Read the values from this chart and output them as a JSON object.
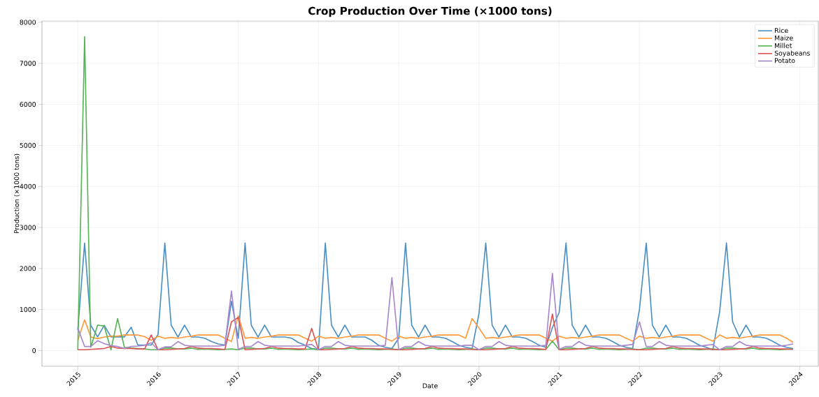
{
  "chart_data": {
    "type": "line",
    "title": "Crop Production Over Time (×1000 tons)",
    "xlabel": "Date",
    "ylabel": "Production (×1000 tons)",
    "x": [
      "2015-01",
      "2015-02",
      "2015-03",
      "2015-04",
      "2015-05",
      "2015-06",
      "2015-07",
      "2015-08",
      "2015-09",
      "2015-10",
      "2015-11",
      "2015-12",
      "2016-01",
      "2016-02",
      "2016-03",
      "2016-04",
      "2016-05",
      "2016-06",
      "2016-07",
      "2016-08",
      "2016-09",
      "2016-10",
      "2016-11",
      "2016-12",
      "2017-01",
      "2017-02",
      "2017-03",
      "2017-04",
      "2017-05",
      "2017-06",
      "2017-07",
      "2017-08",
      "2017-09",
      "2017-10",
      "2017-11",
      "2017-12",
      "2018-01",
      "2018-02",
      "2018-03",
      "2018-04",
      "2018-05",
      "2018-06",
      "2018-07",
      "2018-08",
      "2018-09",
      "2018-10",
      "2018-11",
      "2018-12",
      "2019-01",
      "2019-02",
      "2019-03",
      "2019-04",
      "2019-05",
      "2019-06",
      "2019-07",
      "2019-08",
      "2019-09",
      "2019-10",
      "2019-11",
      "2019-12",
      "2020-01",
      "2020-02",
      "2020-03",
      "2020-04",
      "2020-05",
      "2020-06",
      "2020-07",
      "2020-08",
      "2020-09",
      "2020-10",
      "2020-11",
      "2020-12",
      "2021-01",
      "2021-02",
      "2021-03",
      "2021-04",
      "2021-05",
      "2021-06",
      "2021-07",
      "2021-08",
      "2021-09",
      "2021-10",
      "2021-11",
      "2021-12",
      "2022-01",
      "2022-02",
      "2022-03",
      "2022-04",
      "2022-05",
      "2022-06",
      "2022-07",
      "2022-08",
      "2022-09",
      "2022-10",
      "2022-11",
      "2022-12",
      "2023-01",
      "2023-02",
      "2023-03",
      "2023-04",
      "2023-05",
      "2023-06",
      "2023-07",
      "2023-08",
      "2023-09",
      "2023-10",
      "2023-11",
      "2023-12"
    ],
    "series": [
      {
        "name": "Rice",
        "color": "#4a90c4",
        "values": [
          500,
          2620,
          615,
          333,
          615,
          333,
          333,
          333,
          570,
          135,
          135,
          135,
          390,
          2620,
          620,
          330,
          620,
          330,
          330,
          300,
          220,
          160,
          135,
          1200,
          300,
          2620,
          620,
          330,
          620,
          330,
          330,
          330,
          300,
          200,
          130,
          50,
          30,
          2620,
          620,
          330,
          620,
          330,
          330,
          330,
          250,
          130,
          80,
          50,
          300,
          2620,
          620,
          330,
          620,
          330,
          330,
          300,
          220,
          130,
          80,
          50,
          900,
          2620,
          620,
          330,
          620,
          330,
          330,
          300,
          220,
          130,
          80,
          560,
          930,
          2620,
          620,
          330,
          620,
          330,
          330,
          300,
          220,
          130,
          80,
          50,
          1000,
          2620,
          620,
          330,
          620,
          330,
          330,
          300,
          220,
          130,
          80,
          20,
          950,
          2620,
          700,
          330,
          620,
          330,
          330,
          300,
          220,
          130,
          80,
          50
        ]
      },
      {
        "name": "Maize",
        "color": "#ff9a3c",
        "values": [
          250,
          750,
          330,
          290,
          330,
          350,
          350,
          380,
          380,
          380,
          340,
          250,
          350,
          300,
          320,
          300,
          330,
          350,
          380,
          380,
          380,
          380,
          300,
          220,
          850,
          300,
          320,
          300,
          330,
          350,
          380,
          380,
          380,
          380,
          300,
          230,
          350,
          300,
          320,
          300,
          330,
          350,
          380,
          380,
          380,
          380,
          300,
          230,
          350,
          300,
          320,
          300,
          330,
          350,
          380,
          380,
          380,
          380,
          300,
          780,
          550,
          300,
          320,
          300,
          330,
          350,
          380,
          380,
          380,
          380,
          300,
          230,
          350,
          300,
          320,
          300,
          330,
          350,
          380,
          380,
          380,
          380,
          300,
          230,
          350,
          300,
          320,
          300,
          330,
          350,
          380,
          380,
          380,
          380,
          300,
          230,
          380,
          300,
          320,
          300,
          330,
          350,
          380,
          380,
          380,
          380,
          300,
          200
        ]
      },
      {
        "name": "Millet",
        "color": "#56b456",
        "values": [
          20,
          7650,
          80,
          620,
          600,
          20,
          780,
          80,
          60,
          50,
          40,
          20,
          20,
          60,
          60,
          40,
          40,
          60,
          30,
          40,
          30,
          20,
          30,
          40,
          20,
          60,
          60,
          40,
          40,
          60,
          30,
          40,
          30,
          20,
          30,
          40,
          20,
          60,
          60,
          40,
          40,
          60,
          30,
          40,
          30,
          20,
          30,
          40,
          20,
          60,
          60,
          40,
          40,
          60,
          30,
          40,
          30,
          20,
          30,
          40,
          20,
          60,
          60,
          40,
          40,
          60,
          30,
          40,
          30,
          20,
          30,
          230,
          20,
          60,
          60,
          40,
          40,
          60,
          30,
          40,
          30,
          20,
          30,
          40,
          20,
          60,
          60,
          40,
          40,
          60,
          30,
          40,
          30,
          20,
          30,
          40,
          20,
          60,
          60,
          40,
          40,
          60,
          30,
          40,
          30,
          20,
          30,
          40
        ]
      },
      {
        "name": "Soyabeans",
        "color": "#dc5455",
        "values": [
          20,
          20,
          30,
          40,
          50,
          100,
          60,
          50,
          50,
          40,
          40,
          380,
          20,
          20,
          30,
          40,
          50,
          100,
          60,
          50,
          50,
          40,
          30,
          700,
          810,
          20,
          30,
          40,
          50,
          100,
          60,
          50,
          50,
          40,
          40,
          540,
          20,
          20,
          30,
          40,
          50,
          100,
          60,
          50,
          50,
          40,
          40,
          30,
          20,
          20,
          30,
          40,
          50,
          100,
          60,
          50,
          50,
          40,
          40,
          30,
          20,
          20,
          30,
          40,
          50,
          100,
          60,
          50,
          50,
          40,
          30,
          890,
          20,
          20,
          30,
          40,
          50,
          100,
          60,
          50,
          50,
          40,
          40,
          30,
          20,
          20,
          30,
          40,
          50,
          100,
          60,
          50,
          50,
          40,
          40,
          30,
          20,
          20,
          30,
          40,
          50,
          100,
          60,
          50,
          50,
          40,
          40,
          30
        ]
      },
      {
        "name": "Potato",
        "color": "#a887cb",
        "values": [
          550,
          100,
          100,
          240,
          170,
          120,
          100,
          50,
          100,
          110,
          130,
          190,
          20,
          90,
          90,
          220,
          130,
          110,
          110,
          110,
          110,
          110,
          130,
          1450,
          30,
          100,
          100,
          220,
          130,
          110,
          110,
          110,
          110,
          110,
          130,
          150,
          20,
          100,
          100,
          220,
          130,
          110,
          110,
          110,
          110,
          110,
          130,
          1780,
          20,
          100,
          100,
          220,
          130,
          110,
          110,
          110,
          110,
          110,
          130,
          130,
          20,
          100,
          100,
          220,
          130,
          110,
          110,
          110,
          110,
          110,
          130,
          1880,
          30,
          100,
          100,
          220,
          130,
          110,
          110,
          110,
          110,
          110,
          130,
          150,
          700,
          100,
          100,
          220,
          130,
          110,
          110,
          110,
          110,
          110,
          130,
          150,
          20,
          100,
          100,
          220,
          130,
          110,
          110,
          110,
          110,
          110,
          130,
          160
        ]
      }
    ],
    "xlim": [
      "2014-07-22",
      "2024-03-25"
    ],
    "xticks": [
      "2015",
      "2016",
      "2017",
      "2018",
      "2019",
      "2020",
      "2021",
      "2022",
      "2023",
      "2024"
    ],
    "ylim": [
      -383,
      8033
    ],
    "yticks": [
      0,
      1000,
      2000,
      3000,
      4000,
      5000,
      6000,
      7000,
      8000
    ],
    "grid": true,
    "legend": "top right",
    "marker": "none",
    "line_style": "solid"
  }
}
